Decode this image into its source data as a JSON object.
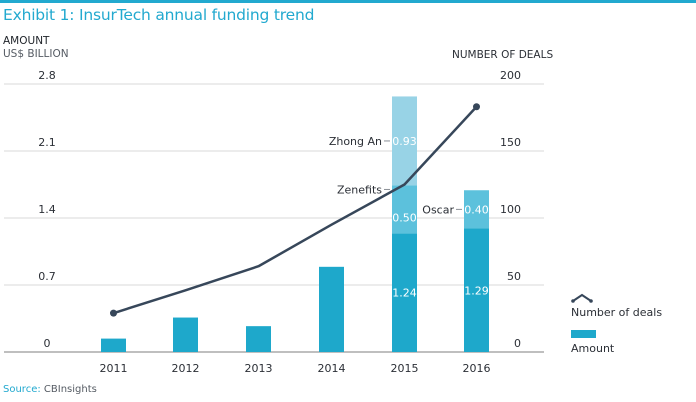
{
  "header": {
    "title": "Exhibit 1: InsurTech annual funding trend",
    "left_axis_title_line1": "AMOUNT",
    "left_axis_title_line2": "US$ BILLION",
    "right_axis_title": "NUMBER OF DEALS"
  },
  "footer": {
    "source_label": "Source:",
    "source_value": "CBInsights"
  },
  "colors": {
    "accent": "#22a9cf",
    "bar_base": "#1ea8cb",
    "bar_mid": "#5cc1dc",
    "bar_top": "#98d3e6",
    "line": "#37475a",
    "grid": "#d9d9d9",
    "axis": "#999999"
  },
  "chart_data": {
    "type": "bar+line",
    "title": "Exhibit 1: InsurTech annual funding trend",
    "categories": [
      "2011",
      "2012",
      "2013",
      "2014",
      "2015",
      "2016"
    ],
    "y_left": {
      "label": "AMOUNT US$ BILLION",
      "lim": [
        0,
        2.8
      ],
      "ticks": [
        "0",
        "0.7",
        "1.4",
        "2.1",
        "2.8"
      ]
    },
    "y_right": {
      "label": "NUMBER OF DEALS",
      "lim": [
        0,
        200
      ],
      "ticks": [
        "0",
        "50",
        "100",
        "150",
        "200"
      ]
    },
    "grid": true,
    "bar_series": {
      "name": "Amount",
      "stacks": [
        {
          "base": 0.14,
          "segments": []
        },
        {
          "base": 0.36,
          "segments": []
        },
        {
          "base": 0.27,
          "segments": []
        },
        {
          "base": 0.89,
          "segments": []
        },
        {
          "base": 1.24,
          "base_label": "1.24",
          "segments": [
            {
              "value": 0.5,
              "label": "0.50",
              "annotation": "Zenefits"
            },
            {
              "value": 0.93,
              "label": "0.93",
              "annotation": "Zhong An"
            }
          ]
        },
        {
          "base": 1.29,
          "base_label": "1.29",
          "segments": [
            {
              "value": 0.4,
              "label": "0.40",
              "annotation": "Oscar"
            }
          ]
        }
      ]
    },
    "line_series": {
      "name": "Number of deals",
      "values": [
        29,
        46,
        64,
        95,
        125,
        183
      ],
      "markers_at": [
        "2011",
        "2016"
      ]
    },
    "legend": {
      "position": "bottom-right",
      "entries": [
        "Number of deals",
        "Amount"
      ]
    }
  }
}
